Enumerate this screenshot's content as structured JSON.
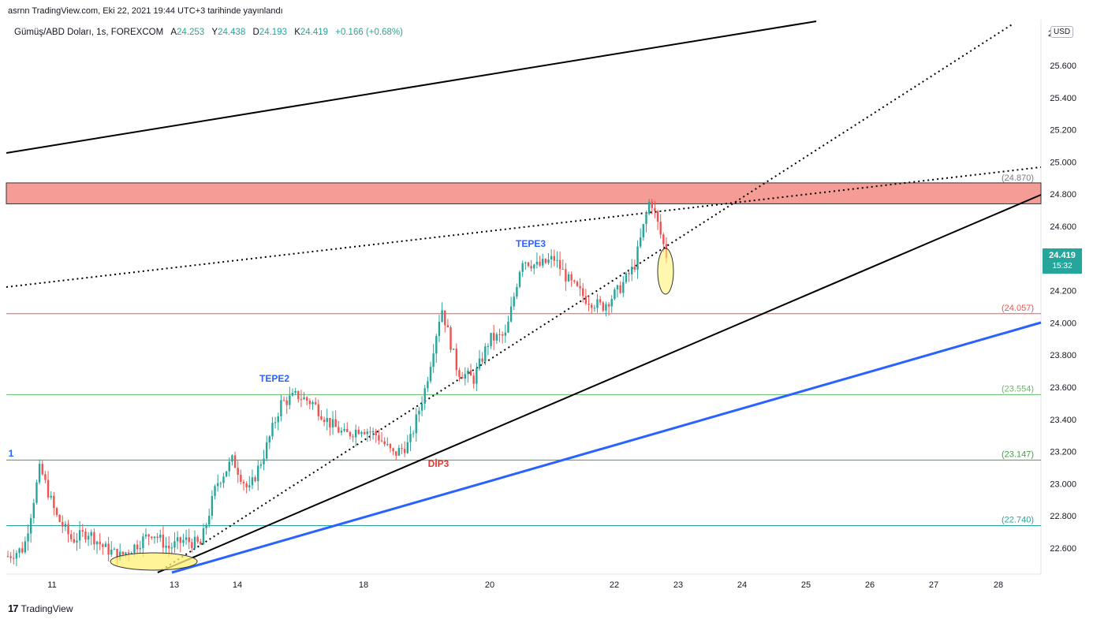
{
  "header": {
    "published": "asrnn TradingView.com, Eki 22, 2021 19:44 UTC+3 tarihinde yayınlandı"
  },
  "legend": {
    "symbol": "Gümüş/ABD Doları, 1s, FOREXCOM",
    "open_label": "A",
    "open": "24.253",
    "high_label": "Y",
    "high": "24.438",
    "low_label": "D",
    "low": "24.193",
    "close_label": "K",
    "close": "24.419",
    "change": "+0.166 (+0.68%)"
  },
  "currency": "USD",
  "price_badge": {
    "price": "24.419",
    "timer": "15:32"
  },
  "footer": {
    "brand": "TradingView",
    "logo": "17"
  },
  "colors": {
    "up": "#26a69a",
    "down": "#ef5350",
    "zone": "#f28b82",
    "blue": "#2962ff",
    "label_blue": "#2962ff",
    "label_red": "#e53935"
  },
  "chart_data": {
    "type": "candlestick",
    "title": "Gümüş/ABD Doları, 1s, FOREXCOM",
    "x_ticks": [
      "11",
      "13",
      "14",
      "18",
      "20",
      "22",
      "23",
      "24",
      "25",
      "26",
      "27",
      "28"
    ],
    "y_ticks": [
      "25.600",
      "25.400",
      "25.200",
      "25.000",
      "24.800",
      "24.600",
      "24.400",
      "24.200",
      "24.000",
      "23.800",
      "23.600",
      "23.400",
      "23.200",
      "23.000",
      "22.800",
      "22.600"
    ],
    "ylim": [
      22.48,
      25.83
    ],
    "levels": [
      {
        "label": "(24.057)",
        "value": 24.057,
        "color": "#ef5350"
      },
      {
        "label": "(23.554)",
        "value": 23.554,
        "color": "#66bb6a"
      },
      {
        "label": "(23.147)",
        "value": 23.147,
        "color": "#43a047"
      },
      {
        "label": "(22.740)",
        "value": 22.74,
        "color": "#26a69a"
      }
    ],
    "resistance_zone": {
      "label": "(24.870)",
      "from": 24.74,
      "to": 24.87
    },
    "annotations": [
      {
        "text": "TEPE2",
        "color": "#2962ff"
      },
      {
        "text": "TEPE3",
        "color": "#2962ff"
      },
      {
        "text": "DİP3",
        "color": "#e53935"
      },
      {
        "text": "1",
        "color": "#2962ff"
      }
    ],
    "price_path": [
      22.55,
      22.6,
      23.1,
      22.8,
      22.65,
      22.7,
      22.6,
      22.55,
      22.62,
      22.7,
      22.6,
      22.65,
      22.62,
      23.0,
      23.15,
      22.95,
      23.2,
      23.5,
      23.55,
      23.5,
      23.38,
      23.3,
      23.35,
      23.3,
      23.18,
      23.25,
      23.6,
      24.1,
      23.7,
      23.65,
      23.9,
      23.92,
      24.4,
      24.35,
      24.4,
      24.25,
      24.15,
      24.1,
      24.2,
      24.35,
      24.78,
      24.42
    ],
    "candle_count": 230
  }
}
